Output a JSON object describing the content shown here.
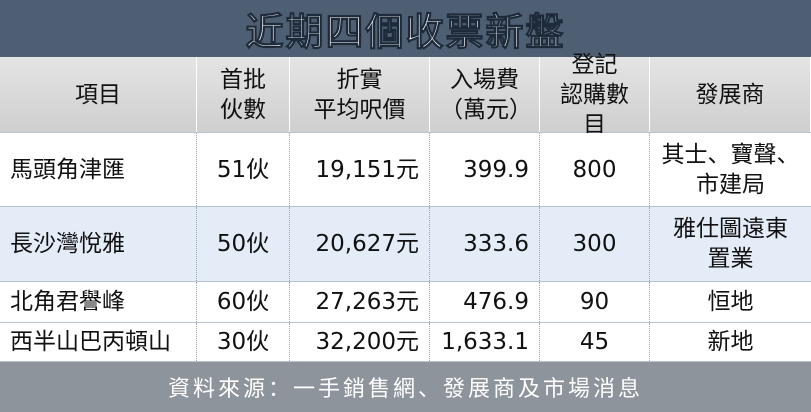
{
  "title": "近期四個收票新盤",
  "table": {
    "header": [
      [
        "項目"
      ],
      [
        "首批",
        "伙數"
      ],
      [
        "折實",
        "平均呎價"
      ],
      [
        "入場費",
        "（萬元）"
      ],
      [
        "登記",
        "認購數目"
      ],
      [
        "發展商"
      ]
    ],
    "rows": [
      [
        [
          "馬頭角津匯"
        ],
        [
          "51伙"
        ],
        [
          "19,151元"
        ],
        [
          "399.9"
        ],
        [
          "800"
        ],
        [
          "其士、寶聲、",
          "市建局"
        ]
      ],
      [
        [
          "長沙灣悅雅"
        ],
        [
          "50伙"
        ],
        [
          "20,627元"
        ],
        [
          "333.6"
        ],
        [
          "300"
        ],
        [
          "雅仕圖遠東",
          "置業"
        ]
      ],
      [
        [
          "北角君譽峰"
        ],
        [
          "60伙"
        ],
        [
          "27,263元"
        ],
        [
          "476.9"
        ],
        [
          "90"
        ],
        [
          "恒地"
        ]
      ],
      [
        [
          "西半山巴丙頓山"
        ],
        [
          "30伙"
        ],
        [
          "32,200元"
        ],
        [
          "1,633.1"
        ],
        [
          "45"
        ],
        [
          "新地"
        ]
      ]
    ]
  },
  "source": "資料來源：一手銷售網、發展商及市場消息"
}
